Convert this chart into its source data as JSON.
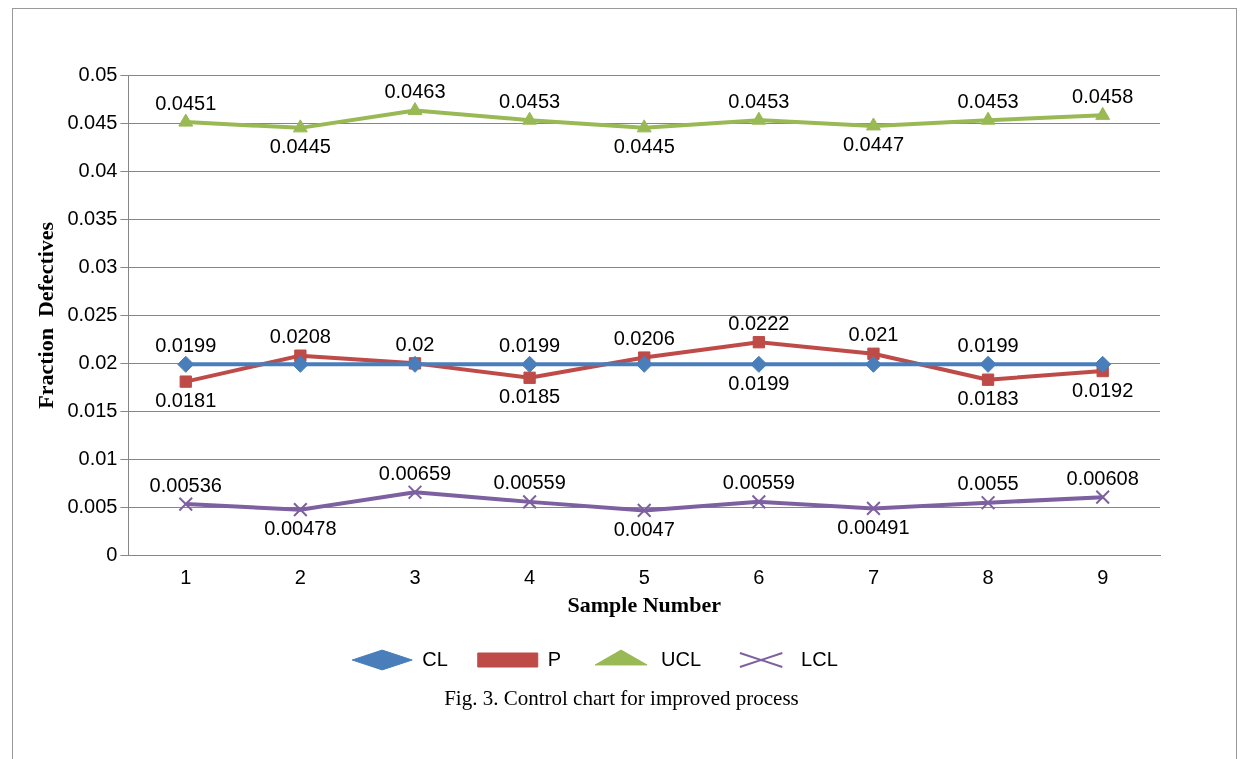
{
  "chart_data": {
    "type": "line",
    "xlabel": "Sample Number",
    "ylabel": "Fraction  Defectives",
    "categories": [
      "1",
      "2",
      "3",
      "4",
      "5",
      "6",
      "7",
      "8",
      "9"
    ],
    "series": [
      {
        "name": "CL",
        "color": "#4a7ebb",
        "marker": "diamond",
        "values": [
          0.0199,
          0.0199,
          0.0199,
          0.0199,
          0.0199,
          0.0199,
          0.0199,
          0.0199,
          0.0199
        ],
        "value_labels": [
          "0.0199",
          null,
          null,
          "0.0199",
          null,
          "0.0199",
          null,
          "0.0199",
          null
        ]
      },
      {
        "name": "P",
        "color": "#be4b48",
        "marker": "square",
        "values": [
          0.0181,
          0.0208,
          0.02,
          0.0185,
          0.0206,
          0.0222,
          0.021,
          0.0183,
          0.0192
        ],
        "value_labels": [
          "0.0181",
          "0.0208",
          "0.02",
          "0.0185",
          "0.0206",
          "0.0222",
          "0.021",
          "0.0183",
          "0.0192"
        ]
      },
      {
        "name": "UCL",
        "color": "#98b954",
        "marker": "triangle",
        "values": [
          0.0451,
          0.0445,
          0.0463,
          0.0453,
          0.0445,
          0.0453,
          0.0447,
          0.0453,
          0.0458
        ],
        "value_labels": [
          "0.0451",
          "0.0445",
          "0.0463",
          "0.0453",
          "0.0445",
          "0.0453",
          "0.0447",
          "0.0453",
          "0.0458"
        ]
      },
      {
        "name": "LCL",
        "color": "#7d60a0",
        "marker": "cross",
        "values": [
          0.00536,
          0.00478,
          0.00659,
          0.00559,
          0.0047,
          0.00559,
          0.00491,
          0.0055,
          0.00608
        ],
        "value_labels": [
          "0.00536",
          "0.00478",
          "0.00659",
          "0.00559",
          "0.0047",
          "0.00559",
          "0.00491",
          "0.0055",
          "0.00608"
        ]
      }
    ],
    "ylim": [
      0,
      0.05
    ],
    "yticks": [
      0,
      0.005,
      0.01,
      0.015,
      0.02,
      0.025,
      0.03,
      0.035,
      0.04,
      0.045,
      0.05
    ],
    "grid": "y",
    "legend": "bottom",
    "line_style": "solid",
    "annotations": [
      "Fig. 3.  Control chart for improved process"
    ]
  }
}
